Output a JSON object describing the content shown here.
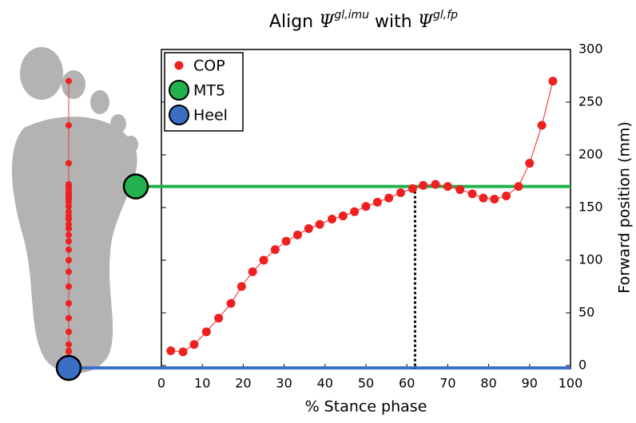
{
  "chart_data": {
    "type": "line",
    "title": [
      "Align ",
      "Ψ",
      "gl,imu",
      " with ",
      "Ψ",
      "gl,fp"
    ],
    "x_label": "% Stance phase",
    "y_label": "Forward position (mm)",
    "xlim": [
      0,
      100
    ],
    "xticks": [
      0,
      10,
      20,
      30,
      40,
      50,
      60,
      70,
      80,
      90,
      100
    ],
    "ylim": [
      0,
      300
    ],
    "yticks": [
      0,
      50,
      100,
      150,
      200,
      250,
      300
    ],
    "vline_x": 62,
    "series": [
      {
        "name": "COP",
        "color": "#ee2020",
        "x": [
          2.3,
          5.3,
          8,
          11,
          14,
          17,
          19.6,
          22.3,
          25,
          27.8,
          30.5,
          33.3,
          36,
          38.7,
          41.7,
          44.4,
          47.2,
          50,
          52.8,
          55.6,
          58.5,
          61.4,
          64,
          67,
          70,
          73,
          76,
          78.7,
          81.4,
          84.3,
          87.3,
          90,
          93,
          95.7
        ],
        "values": [
          14,
          13,
          20,
          32,
          45,
          59,
          75,
          89,
          100,
          110,
          118,
          124,
          130,
          134,
          139,
          142,
          146,
          151,
          155,
          159,
          164,
          168,
          171,
          172,
          170,
          167,
          163,
          159,
          158,
          161,
          170,
          192,
          228,
          270
        ]
      },
      {
        "name": "MT5",
        "color": "#22b14c",
        "values": [
          170
        ]
      },
      {
        "name": "Heel",
        "color": "#3a6fc4",
        "values": [
          0
        ]
      }
    ]
  }
}
